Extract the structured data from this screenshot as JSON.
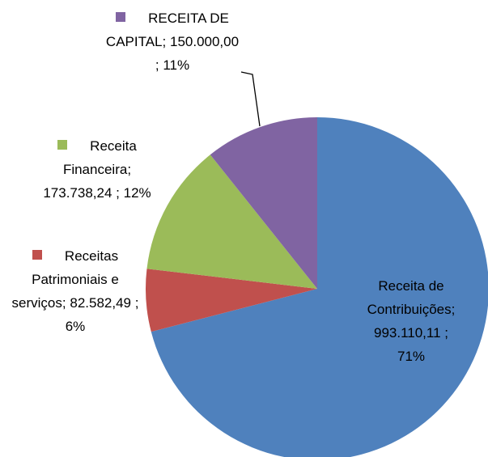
{
  "chart_data": {
    "type": "pie",
    "categories": [
      "Receita de Contribuições",
      "Receitas Patrimoniais e serviços",
      "Receita Financeira",
      "RECEITA DE CAPITAL"
    ],
    "values": [
      993110.11,
      82582.49,
      173738.24,
      150000.0
    ],
    "value_labels": [
      "993.110,11",
      "82.582,49",
      "173.738,24",
      "150.000,00"
    ],
    "percents": [
      71,
      6,
      12,
      11
    ],
    "percent_labels": [
      "71%",
      "6%",
      "12%",
      "11%"
    ],
    "label_separator": ";",
    "colors": [
      "#4f81bd",
      "#c0504d",
      "#9bbb59",
      "#8064a2"
    ]
  }
}
